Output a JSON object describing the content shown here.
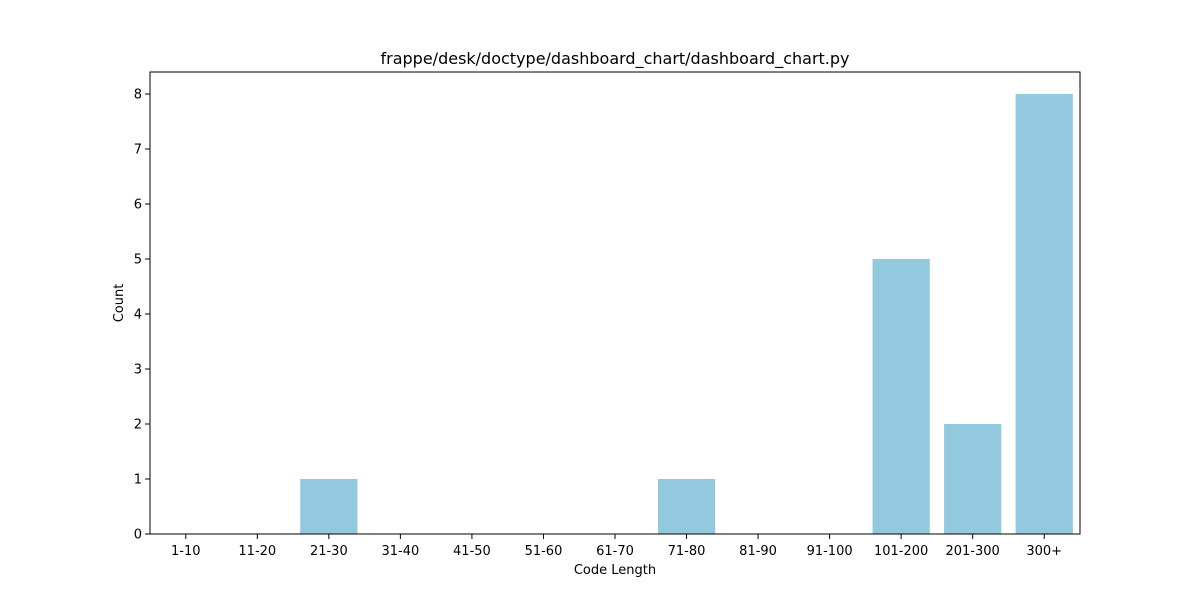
{
  "chart_data": {
    "type": "bar",
    "title": "frappe/desk/doctype/dashboard_chart/dashboard_chart.py",
    "xlabel": "Code Length",
    "ylabel": "Count",
    "categories": [
      "1-10",
      "11-20",
      "21-30",
      "31-40",
      "41-50",
      "51-60",
      "61-70",
      "71-80",
      "81-90",
      "91-100",
      "101-200",
      "201-300",
      "300+"
    ],
    "values": [
      0,
      0,
      1,
      0,
      0,
      0,
      0,
      1,
      0,
      0,
      5,
      2,
      8
    ],
    "ylim": [
      0,
      8.4
    ],
    "yticks": [
      0,
      1,
      2,
      3,
      4,
      5,
      6,
      7,
      8
    ],
    "bar_color": "#92c9de",
    "grid": false,
    "legend": "none"
  }
}
